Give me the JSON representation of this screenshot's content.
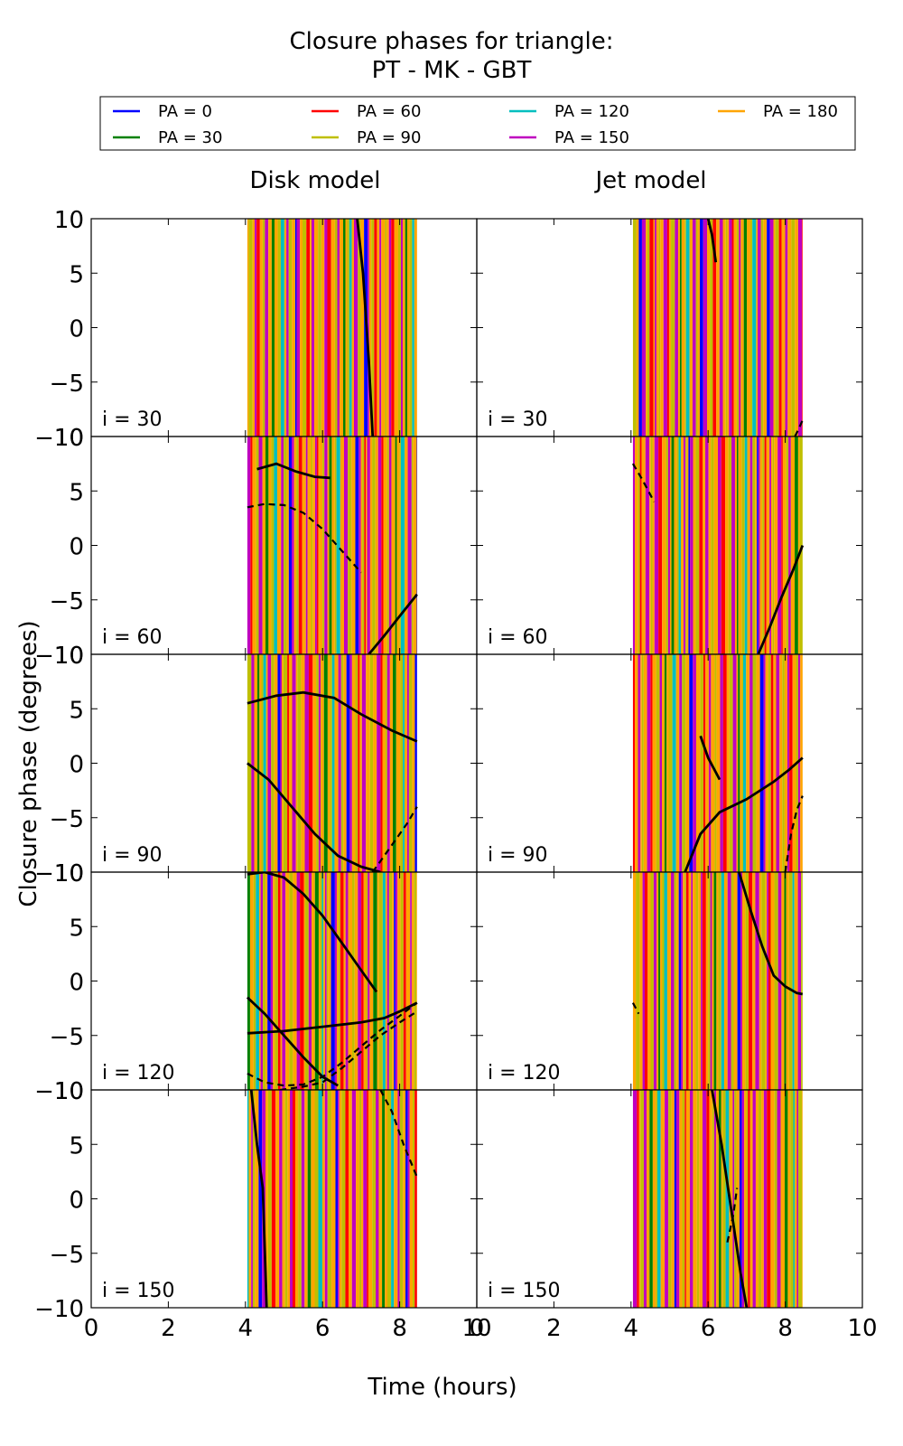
{
  "title_lines": [
    "Closure phases for triangle:",
    "PT - MK - GBT"
  ],
  "legend": {
    "placement": "top",
    "entries": [
      {
        "label": "PA = 0",
        "color": "#0000ff"
      },
      {
        "label": "PA = 30",
        "color": "#008000"
      },
      {
        "label": "PA = 60",
        "color": "#ff0000"
      },
      {
        "label": "PA = 90",
        "color": "#bfbf00"
      },
      {
        "label": "PA = 120",
        "color": "#00bfbf"
      },
      {
        "label": "PA = 150",
        "color": "#bf00bf"
      },
      {
        "label": "PA = 180",
        "color": "#ffa500"
      }
    ]
  },
  "column_titles": [
    "Disk model",
    "Jet model"
  ],
  "xlabel": "Time (hours)",
  "ylabel": "Closure phase (degrees)",
  "panel_labels": [
    "i = 30",
    "i = 60",
    "i = 90",
    "i = 120",
    "i = 150"
  ],
  "x_ticks": [
    "0",
    "2",
    "4",
    "6",
    "8",
    "10"
  ],
  "y_ticks": [
    "10",
    "5",
    "0",
    "−5",
    "−10"
  ],
  "chart_data": {
    "type": "line",
    "xlim": [
      0,
      10
    ],
    "ylim": [
      -10,
      10
    ],
    "grid": false,
    "columns": [
      "Disk model",
      "Jet model"
    ],
    "rows": [
      "i = 30",
      "i = 60",
      "i = 90",
      "i = 120",
      "i = 150"
    ],
    "time_range_hours": {
      "Disk model": [
        4.05,
        8.45
      ],
      "Jet model": [
        4.05,
        8.45
      ]
    },
    "series": [
      "PA = 0",
      "PA = 30",
      "PA = 60",
      "PA = 90",
      "PA = 120",
      "PA = 150",
      "PA = 180"
    ],
    "note_visible": "Colored series wrap rapidly between -10 and 10 (vertical bands); black traces shown below",
    "black_traces": [
      {
        "col": 0,
        "row": 0,
        "x": [
          6.9,
          7.05,
          7.2,
          7.3
        ],
        "y": [
          10,
          5,
          -3,
          -10
        ]
      },
      {
        "col": 0,
        "row": 1,
        "x": [
          7.2,
          7.6,
          8.0,
          8.45
        ],
        "y": [
          -10,
          -8.3,
          -6.5,
          -4.5
        ]
      },
      {
        "col": 0,
        "row": 1,
        "x": [
          4.05,
          4.5,
          5.0,
          5.5,
          6.0,
          6.5,
          7.0
        ],
        "y": [
          3.5,
          3.8,
          3.7,
          3.0,
          1.5,
          -0.5,
          -2.5
        ]
      },
      {
        "col": 0,
        "row": 1,
        "x": [
          4.3,
          4.8,
          5.3,
          5.8,
          6.2
        ],
        "y": [
          7.0,
          7.5,
          6.8,
          6.3,
          6.2
        ]
      },
      {
        "col": 0,
        "row": 2,
        "x": [
          4.05,
          4.6,
          5.2,
          5.8,
          6.4,
          7.0,
          7.5
        ],
        "y": [
          0,
          -1.5,
          -4.0,
          -6.5,
          -8.5,
          -9.5,
          -10
        ]
      },
      {
        "col": 0,
        "row": 2,
        "x": [
          7.3,
          7.8,
          8.2,
          8.45
        ],
        "y": [
          -10,
          -7.5,
          -5.5,
          -4.0
        ]
      },
      {
        "col": 0,
        "row": 2,
        "x": [
          4.05,
          4.8,
          5.5,
          6.3,
          7.0,
          7.8,
          8.45
        ],
        "y": [
          5.5,
          6.2,
          6.5,
          6.0,
          4.5,
          3.0,
          2.0
        ]
      },
      {
        "col": 0,
        "row": 3,
        "x": [
          4.05,
          5.0,
          6.0,
          7.0,
          7.6,
          8.0,
          8.45
        ],
        "y": [
          -4.8,
          -4.6,
          -4.2,
          -3.8,
          -3.4,
          -2.8,
          -2.0
        ]
      },
      {
        "col": 0,
        "row": 3,
        "x": [
          4.05,
          4.5,
          5.0,
          5.5,
          6.0,
          6.5,
          7.0,
          7.5,
          8.0,
          8.45
        ],
        "y": [
          -8.5,
          -9.3,
          -9.6,
          -9.5,
          -8.8,
          -7.5,
          -6.0,
          -4.5,
          -3.2,
          -2.0
        ]
      },
      {
        "col": 0,
        "row": 3,
        "x": [
          4.05,
          4.5,
          5.0,
          5.5,
          6.0,
          6.4
        ],
        "y": [
          -1.5,
          -3.0,
          -5.0,
          -7.0,
          -8.8,
          -9.6
        ]
      },
      {
        "col": 0,
        "row": 3,
        "x": [
          4.9,
          5.5,
          6.0,
          6.5,
          7.0,
          7.5,
          8.0,
          8.45
        ],
        "y": [
          -10,
          -9.7,
          -9.3,
          -8.0,
          -6.5,
          -5.0,
          -3.8,
          -2.8
        ]
      },
      {
        "col": 0,
        "row": 3,
        "x": [
          4.05,
          4.5,
          5.0,
          5.5,
          6.0,
          6.5,
          7.0,
          7.4
        ],
        "y": [
          9.8,
          10,
          9.5,
          8.0,
          6.0,
          3.5,
          1.0,
          -1.0
        ]
      },
      {
        "col": 0,
        "row": 4,
        "x": [
          4.15,
          4.3,
          4.45,
          4.55
        ],
        "y": [
          10,
          5,
          1,
          -10
        ]
      },
      {
        "col": 0,
        "row": 4,
        "x": [
          7.5,
          7.8,
          8.1,
          8.45
        ],
        "y": [
          10,
          8.0,
          5.0,
          2.0
        ]
      },
      {
        "col": 1,
        "row": 0,
        "x": [
          6.0,
          6.1,
          6.2
        ],
        "y": [
          10,
          8.5,
          6.0
        ]
      },
      {
        "col": 1,
        "row": 0,
        "x": [
          8.25,
          8.35,
          8.45
        ],
        "y": [
          -10,
          -9.3,
          -8.5
        ]
      },
      {
        "col": 1,
        "row": 1,
        "x": [
          7.3,
          7.6,
          7.9,
          8.2,
          8.45
        ],
        "y": [
          -10,
          -7.5,
          -4.8,
          -2.3,
          0
        ]
      },
      {
        "col": 1,
        "row": 1,
        "x": [
          4.05,
          4.3,
          4.6
        ],
        "y": [
          7.5,
          6.0,
          4.0
        ]
      },
      {
        "col": 1,
        "row": 2,
        "x": [
          5.4,
          5.8,
          6.3,
          7.0,
          7.7,
          8.1,
          8.45
        ],
        "y": [
          -10,
          -6.5,
          -4.5,
          -3.3,
          -1.7,
          -0.6,
          0.5
        ]
      },
      {
        "col": 1,
        "row": 2,
        "x": [
          8.0,
          8.15,
          8.3,
          8.45
        ],
        "y": [
          -10,
          -6.5,
          -4.3,
          -3.0
        ]
      },
      {
        "col": 1,
        "row": 2,
        "x": [
          5.8,
          6.0,
          6.3
        ],
        "y": [
          2.5,
          0.5,
          -1.5
        ]
      },
      {
        "col": 1,
        "row": 3,
        "x": [
          6.8,
          7.1,
          7.4,
          7.7,
          8.0,
          8.3,
          8.45
        ],
        "y": [
          10,
          6.5,
          3.2,
          0.5,
          -0.5,
          -1.1,
          -1.2
        ]
      },
      {
        "col": 1,
        "row": 3,
        "x": [
          4.05,
          4.2
        ],
        "y": [
          -2.0,
          -3.0
        ]
      },
      {
        "col": 1,
        "row": 4,
        "x": [
          6.1,
          6.35,
          6.6,
          6.85,
          7.0
        ],
        "y": [
          10,
          5.0,
          -1.0,
          -7.0,
          -10
        ]
      },
      {
        "col": 1,
        "row": 4,
        "x": [
          6.5,
          6.65,
          6.75
        ],
        "y": [
          -4.0,
          -1.5,
          1.0
        ]
      }
    ]
  }
}
